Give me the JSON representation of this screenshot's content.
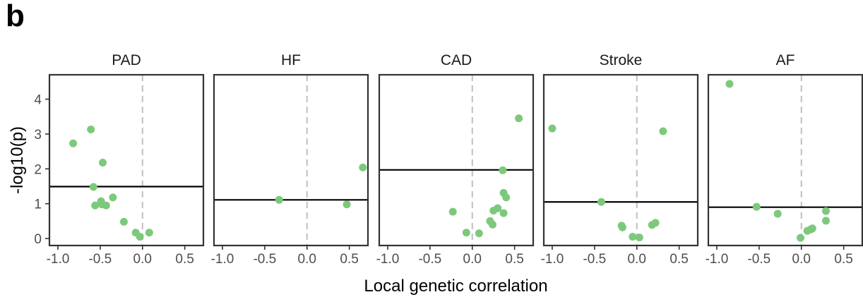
{
  "panel_label": "b",
  "chart_data": {
    "type": "scatter",
    "xlabel": "Local genetic correlation",
    "ylabel": "-log10(p)",
    "xlim": [
      -1.1,
      0.72
    ],
    "ylim": [
      -0.2,
      4.7
    ],
    "x_ticks": [
      -1.0,
      -0.5,
      0.0,
      0.5
    ],
    "x_tick_labels": [
      "-1.0",
      "-0.5",
      "0.0",
      "0.5"
    ],
    "y_ticks": [
      0,
      1,
      2,
      3,
      4
    ],
    "y_tick_labels": [
      "0",
      "1",
      "2",
      "3",
      "4"
    ],
    "point_color": "#7dc97c",
    "threshold_color": "#000000",
    "zero_line_color": "#bfbfbf",
    "grid": false,
    "facets": [
      {
        "name": "PAD",
        "threshold": 1.49,
        "points": [
          {
            "x": -0.82,
            "y": 2.73
          },
          {
            "x": -0.61,
            "y": 3.13
          },
          {
            "x": -0.47,
            "y": 2.18
          },
          {
            "x": -0.58,
            "y": 1.48
          },
          {
            "x": -0.56,
            "y": 0.95
          },
          {
            "x": -0.49,
            "y": 1.07
          },
          {
            "x": -0.48,
            "y": 0.98
          },
          {
            "x": -0.43,
            "y": 0.95
          },
          {
            "x": -0.35,
            "y": 1.18
          },
          {
            "x": -0.22,
            "y": 0.48
          },
          {
            "x": -0.08,
            "y": 0.17
          },
          {
            "x": -0.03,
            "y": 0.05
          },
          {
            "x": 0.08,
            "y": 0.17
          }
        ]
      },
      {
        "name": "HF",
        "threshold": 1.11,
        "points": [
          {
            "x": -0.33,
            "y": 1.11
          },
          {
            "x": 0.47,
            "y": 0.98
          },
          {
            "x": 0.66,
            "y": 2.04
          }
        ]
      },
      {
        "name": "CAD",
        "threshold": 1.97,
        "points": [
          {
            "x": 0.55,
            "y": 3.45
          },
          {
            "x": 0.36,
            "y": 1.96
          },
          {
            "x": 0.37,
            "y": 1.31
          },
          {
            "x": 0.4,
            "y": 1.18
          },
          {
            "x": 0.3,
            "y": 0.87
          },
          {
            "x": 0.25,
            "y": 0.8
          },
          {
            "x": 0.37,
            "y": 0.73
          },
          {
            "x": -0.23,
            "y": 0.77
          },
          {
            "x": 0.21,
            "y": 0.5
          },
          {
            "x": 0.24,
            "y": 0.4
          },
          {
            "x": -0.07,
            "y": 0.17
          },
          {
            "x": 0.08,
            "y": 0.15
          }
        ]
      },
      {
        "name": "Stroke",
        "threshold": 1.05,
        "points": [
          {
            "x": -1.0,
            "y": 3.16
          },
          {
            "x": 0.31,
            "y": 3.08
          },
          {
            "x": -0.42,
            "y": 1.05
          },
          {
            "x": -0.18,
            "y": 0.37
          },
          {
            "x": -0.17,
            "y": 0.32
          },
          {
            "x": 0.18,
            "y": 0.39
          },
          {
            "x": 0.22,
            "y": 0.45
          },
          {
            "x": -0.05,
            "y": 0.05
          },
          {
            "x": 0.03,
            "y": 0.03
          }
        ]
      },
      {
        "name": "AF",
        "threshold": 0.9,
        "points": [
          {
            "x": -0.85,
            "y": 4.44
          },
          {
            "x": -0.53,
            "y": 0.91
          },
          {
            "x": -0.28,
            "y": 0.71
          },
          {
            "x": 0.29,
            "y": 0.79
          },
          {
            "x": 0.29,
            "y": 0.51
          },
          {
            "x": 0.13,
            "y": 0.29
          },
          {
            "x": 0.11,
            "y": 0.26
          },
          {
            "x": 0.07,
            "y": 0.22
          },
          {
            "x": -0.01,
            "y": 0.02
          }
        ]
      }
    ]
  }
}
